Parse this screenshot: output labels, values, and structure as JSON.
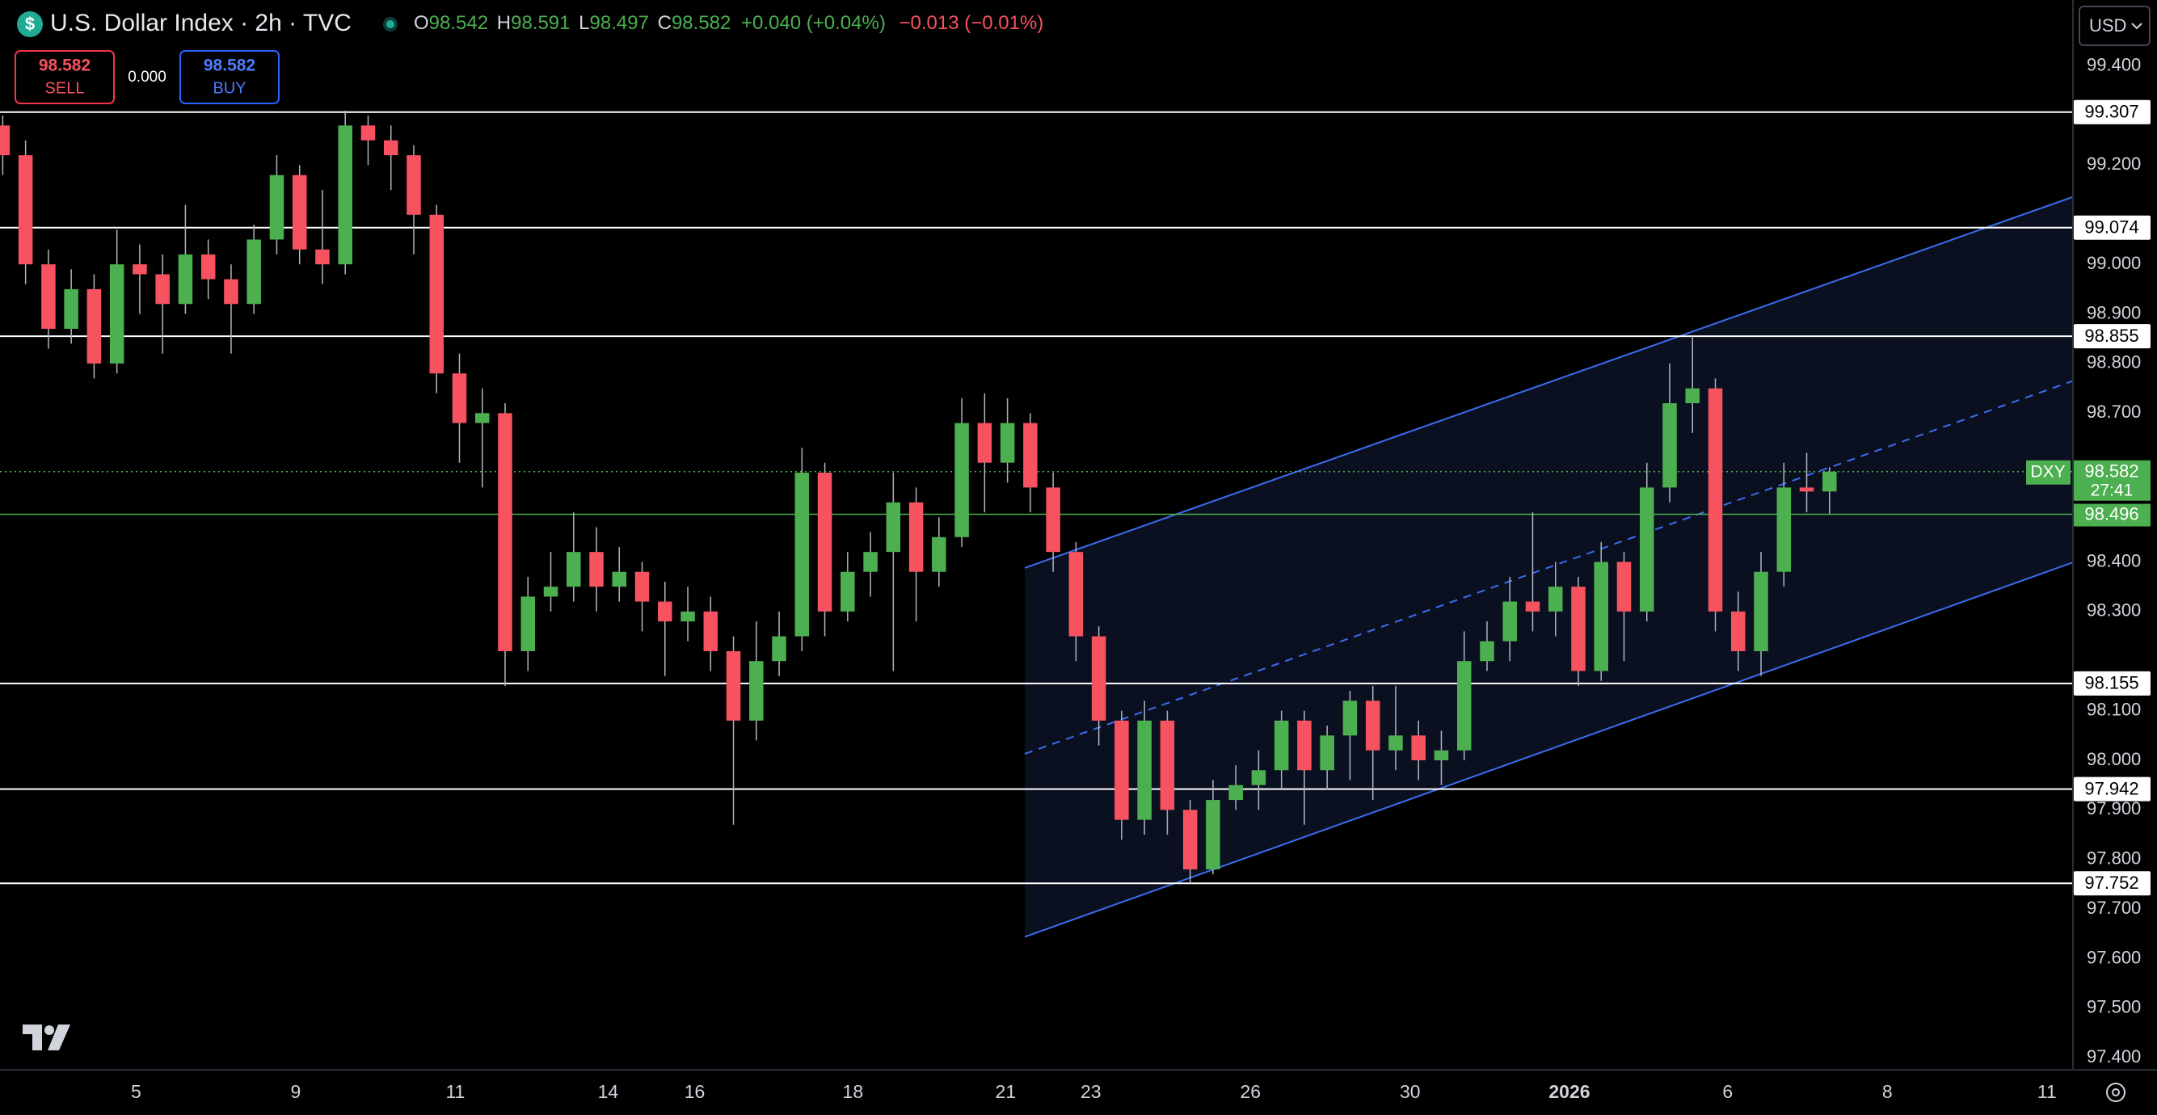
{
  "chart_data": {
    "type": "candlestick",
    "title": "U.S. Dollar Index · 2h · TVC",
    "icon": "$",
    "ohlc_legend": {
      "o_label": "O",
      "o": "98.542",
      "h_label": "H",
      "h": "98.591",
      "l_label": "L",
      "l": "98.497",
      "c_label": "C",
      "c": "98.582",
      "change": "+0.040 (+0.04%)",
      "ext_change": "−0.013 (−0.01%)"
    },
    "trade_panel": {
      "sell_price": "98.582",
      "sell_label": "SELL",
      "spread": "0.000",
      "buy_price": "98.582",
      "buy_label": "BUY"
    },
    "currency": "USD",
    "up_color": "#4caf50",
    "down_color": "#f7525f",
    "wick_color": "#b2b5be",
    "open": [
      99.28,
      99.22,
      99.0,
      98.87,
      98.95,
      98.8,
      99.0,
      98.98,
      98.92,
      99.02,
      98.97,
      98.92,
      99.05,
      99.18,
      99.03,
      99.0,
      99.28,
      99.25,
      99.22,
      99.1,
      98.78,
      98.68,
      98.7,
      98.22,
      98.33,
      98.35,
      98.42,
      98.35,
      98.38,
      98.32,
      98.28,
      98.3,
      98.22,
      98.08,
      98.2,
      98.25,
      98.58,
      98.3,
      98.38,
      98.42,
      98.52,
      98.38,
      98.45,
      98.68,
      98.6,
      98.68,
      98.55,
      98.42,
      98.25,
      98.08,
      97.88,
      98.08,
      97.9,
      97.78,
      97.92,
      97.95,
      97.98,
      98.08,
      97.98,
      98.05,
      98.12,
      98.02,
      98.05,
      98.0,
      98.02,
      98.2,
      98.24,
      98.32,
      98.3,
      98.35,
      98.18,
      98.4,
      98.3,
      98.55,
      98.72,
      98.75,
      98.3,
      98.22,
      98.38,
      98.55,
      98.542
    ],
    "high": [
      99.3,
      99.25,
      99.03,
      98.99,
      98.98,
      99.07,
      99.04,
      99.02,
      99.12,
      99.05,
      99.0,
      99.08,
      99.22,
      99.2,
      99.15,
      99.31,
      99.3,
      99.28,
      99.24,
      99.12,
      98.82,
      98.75,
      98.72,
      98.37,
      98.42,
      98.5,
      98.47,
      98.43,
      98.4,
      98.36,
      98.35,
      98.33,
      98.25,
      98.28,
      98.3,
      98.63,
      98.6,
      98.42,
      98.46,
      98.58,
      98.55,
      98.49,
      98.73,
      98.74,
      98.73,
      98.7,
      98.58,
      98.44,
      98.27,
      98.1,
      98.12,
      98.1,
      97.92,
      97.96,
      97.99,
      98.02,
      98.1,
      98.1,
      98.07,
      98.14,
      98.15,
      98.15,
      98.08,
      98.06,
      98.26,
      98.28,
      98.37,
      98.5,
      98.4,
      98.37,
      98.44,
      98.42,
      98.6,
      98.8,
      98.855,
      98.77,
      98.34,
      98.42,
      98.6,
      98.62,
      98.591
    ],
    "low": [
      99.18,
      98.96,
      98.83,
      98.84,
      98.77,
      98.78,
      98.9,
      98.82,
      98.9,
      98.93,
      98.82,
      98.9,
      99.02,
      99.0,
      98.96,
      98.98,
      99.2,
      99.15,
      99.02,
      98.74,
      98.6,
      98.55,
      98.15,
      98.18,
      98.3,
      98.32,
      98.3,
      98.32,
      98.26,
      98.17,
      98.24,
      98.18,
      97.87,
      98.04,
      98.17,
      98.22,
      98.25,
      98.28,
      98.33,
      98.18,
      98.28,
      98.35,
      98.43,
      98.5,
      98.56,
      98.5,
      98.38,
      98.2,
      98.03,
      97.84,
      97.85,
      97.85,
      97.752,
      97.77,
      97.9,
      97.9,
      97.94,
      97.87,
      97.94,
      97.96,
      97.92,
      97.98,
      97.96,
      97.95,
      98.0,
      98.18,
      98.2,
      98.26,
      98.25,
      98.15,
      98.16,
      98.2,
      98.28,
      98.52,
      98.66,
      98.26,
      98.18,
      98.17,
      98.35,
      98.5,
      98.497
    ],
    "close": [
      99.22,
      99.0,
      98.87,
      98.95,
      98.8,
      99.0,
      98.98,
      98.92,
      99.02,
      98.97,
      98.92,
      99.05,
      99.18,
      99.03,
      99.0,
      99.28,
      99.25,
      99.22,
      99.1,
      98.78,
      98.68,
      98.7,
      98.22,
      98.33,
      98.35,
      98.42,
      98.35,
      98.38,
      98.32,
      98.28,
      98.3,
      98.22,
      98.08,
      98.2,
      98.25,
      98.58,
      98.3,
      98.38,
      98.42,
      98.52,
      98.38,
      98.45,
      98.68,
      98.6,
      98.68,
      98.55,
      98.42,
      98.25,
      98.08,
      97.88,
      98.08,
      97.9,
      97.78,
      97.92,
      97.95,
      97.98,
      98.08,
      97.98,
      98.05,
      98.12,
      98.02,
      98.05,
      98.0,
      98.02,
      98.2,
      98.24,
      98.32,
      98.3,
      98.35,
      98.18,
      98.4,
      98.3,
      98.55,
      98.72,
      98.75,
      98.3,
      98.22,
      98.38,
      98.55,
      98.542,
      98.582
    ],
    "xlim": [
      -0.12,
      90.66
    ],
    "xticks": [
      {
        "value": 5.84,
        "label": "5"
      },
      {
        "value": 12.83,
        "label": "9"
      },
      {
        "value": 19.82,
        "label": "11"
      },
      {
        "value": 26.51,
        "label": "14"
      },
      {
        "value": 30.3,
        "label": "16"
      },
      {
        "value": 37.23,
        "label": "18"
      },
      {
        "value": 43.92,
        "label": "21"
      },
      {
        "value": 47.65,
        "label": "23"
      },
      {
        "value": 54.64,
        "label": "26"
      },
      {
        "value": 61.63,
        "label": "30"
      },
      {
        "value": 68.61,
        "label": "2026"
      },
      {
        "value": 75.54,
        "label": "6"
      },
      {
        "value": 82.53,
        "label": "8"
      },
      {
        "value": 89.52,
        "label": "11"
      }
    ],
    "ylim": [
      97.376,
      99.533
    ],
    "yticks": [
      {
        "value": 99.4,
        "label": "99.400"
      },
      {
        "value": 99.2,
        "label": "99.200"
      },
      {
        "value": 99.0,
        "label": "99.000"
      },
      {
        "value": 98.9,
        "label": "98.900"
      },
      {
        "value": 98.8,
        "label": "98.800"
      },
      {
        "value": 98.7,
        "label": "98.700"
      },
      {
        "value": 98.4,
        "label": "98.400"
      },
      {
        "value": 98.3,
        "label": "98.300"
      },
      {
        "value": 98.1,
        "label": "98.100"
      },
      {
        "value": 98.0,
        "label": "98.000"
      },
      {
        "value": 97.9,
        "label": "97.900"
      },
      {
        "value": 97.8,
        "label": "97.800"
      },
      {
        "value": 97.7,
        "label": "97.700"
      },
      {
        "value": 97.6,
        "label": "97.600"
      },
      {
        "value": 97.5,
        "label": "97.500"
      },
      {
        "value": 97.4,
        "label": "97.400"
      }
    ],
    "grid": false,
    "levels": {
      "color": "#ffffff",
      "values": [
        99.307,
        99.074,
        98.855,
        98.155,
        97.942,
        97.752
      ]
    },
    "green_level": {
      "color": "#4caf50",
      "value": 98.496
    },
    "last_price": {
      "symbol": "DXY",
      "value": 98.582,
      "countdown": "27:41",
      "color": "#4caf50"
    },
    "channel": {
      "x": [
        44.76,
        90.66
      ],
      "upper": [
        98.388,
        99.136
      ],
      "middle": [
        98.013,
        98.765
      ],
      "lower": [
        97.644,
        98.399
      ],
      "color": "#3a6df0"
    }
  }
}
